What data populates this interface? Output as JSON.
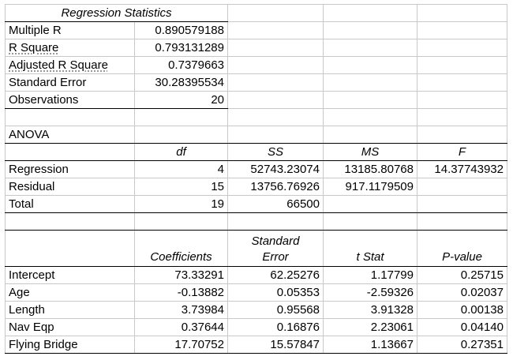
{
  "regression_statistics": {
    "header": "Regression Statistics",
    "rows": [
      {
        "label": "Multiple R",
        "value": "0.890579188"
      },
      {
        "label": "R Square",
        "value": "0.793131289"
      },
      {
        "label": "Adjusted R Square",
        "value": "0.7379663"
      },
      {
        "label": "Standard Error",
        "value": "30.28395534"
      },
      {
        "label": "Observations",
        "value": "20"
      }
    ]
  },
  "anova": {
    "title": "ANOVA",
    "headers": [
      "df",
      "SS",
      "MS",
      "F"
    ],
    "rows": [
      {
        "label": "Regression",
        "df": "4",
        "ss": "52743.23074",
        "ms": "13185.80768",
        "f": "14.37743932"
      },
      {
        "label": "Residual",
        "df": "15",
        "ss": "13756.76926",
        "ms": "917.1179509",
        "f": ""
      },
      {
        "label": "Total",
        "df": "19",
        "ss": "66500",
        "ms": "",
        "f": ""
      }
    ]
  },
  "coefficients": {
    "headers": {
      "coefficients": "Coefficients",
      "std_error_line1": "Standard",
      "std_error_line2": "Error",
      "t_stat": "t Stat",
      "p_value": "P-value"
    },
    "rows": [
      {
        "label": "Intercept",
        "coef": "73.33291",
        "se": "62.25276",
        "t": "1.17799",
        "p": "0.25715"
      },
      {
        "label": "Age",
        "coef": "-0.13882",
        "se": "0.05353",
        "t": "-2.59326",
        "p": "0.02037"
      },
      {
        "label": "Length",
        "coef": "3.73984",
        "se": "0.95568",
        "t": "3.91328",
        "p": "0.00138"
      },
      {
        "label": "Nav Eqp",
        "coef": "0.37644",
        "se": "0.16876",
        "t": "2.23061",
        "p": "0.04140"
      },
      {
        "label": "Flying Bridge",
        "coef": "17.70752",
        "se": "15.57847",
        "t": "1.13667",
        "p": "0.27351"
      }
    ]
  }
}
